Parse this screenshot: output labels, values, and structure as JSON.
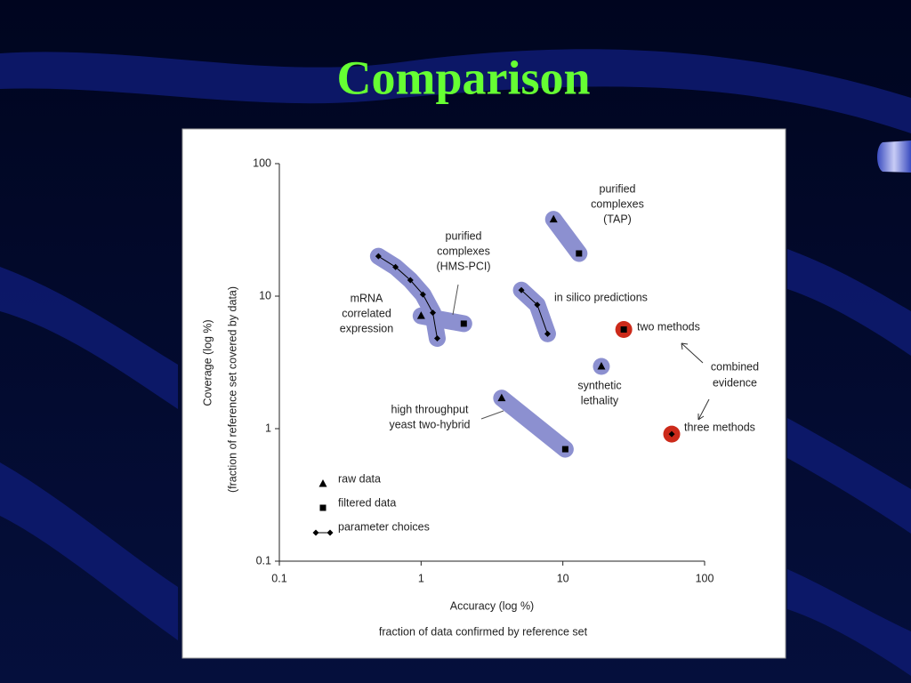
{
  "title": "Comparison",
  "chart_data": {
    "type": "scatter",
    "log_scale": true,
    "xlim": [
      0.1,
      100
    ],
    "ylim": [
      0.1,
      100
    ],
    "xticks": [
      0.1,
      1,
      10,
      100
    ],
    "yticks": [
      0.1,
      1,
      10,
      100
    ],
    "x_label": "Accuracy (log %)",
    "x_sublabel": "fraction of data confirmed by reference set",
    "y_label": "Coverage (log %)",
    "y_sublabel": "(fraction of reference set covered by data)",
    "series": [
      {
        "label_lines": [
          "mRNA",
          "correlated",
          "expression"
        ],
        "highlight": "#8c90d0",
        "markers": [
          "diamond",
          "diamond",
          "diamond",
          "diamond",
          "diamond",
          "diamond"
        ],
        "x": [
          0.5,
          0.66,
          0.84,
          1.03,
          1.21,
          1.3
        ],
        "y": [
          20,
          16.6,
          13.2,
          10.3,
          7.5,
          4.8
        ]
      },
      {
        "label_lines": [
          "purified",
          "complexes",
          "(HMS-PCI)"
        ],
        "highlight": "#8c90d0",
        "markers": [
          "triangle",
          "square"
        ],
        "x": [
          1.0,
          2.0
        ],
        "y": [
          7.1,
          6.2
        ]
      },
      {
        "label_lines": [
          "purified",
          "complexes",
          "(TAP)"
        ],
        "highlight": "#8c90d0",
        "markers": [
          "triangle",
          "square"
        ],
        "x": [
          8.6,
          13
        ],
        "y": [
          38,
          21
        ]
      },
      {
        "label_lines": [
          "in silico predictions"
        ],
        "highlight": "#8c90d0",
        "markers": [
          "diamond",
          "diamond",
          "diamond"
        ],
        "x": [
          5.1,
          6.6,
          7.8
        ],
        "y": [
          11.1,
          8.6,
          5.2
        ]
      },
      {
        "label_lines": [
          "high throughput",
          "yeast two-hybrid"
        ],
        "highlight": "#8c90d0",
        "markers": [
          "triangle",
          "square"
        ],
        "x": [
          3.7,
          10.4
        ],
        "y": [
          1.7,
          0.7
        ]
      },
      {
        "label_lines": [
          "synthetic",
          "lethality"
        ],
        "highlight": "#8c90d0",
        "markers": [
          "triangle"
        ],
        "x": [
          18.7
        ],
        "y": [
          2.95
        ]
      },
      {
        "label_lines": [
          "two methods"
        ],
        "highlight": "#cc2a1a",
        "markers": [
          "square"
        ],
        "x": [
          26.9
        ],
        "y": [
          5.6
        ]
      },
      {
        "label_lines": [
          "three methods"
        ],
        "highlight": "#cc2a1a",
        "markers": [
          "diamond"
        ],
        "x": [
          58.6
        ],
        "y": [
          0.91
        ]
      }
    ],
    "annotation_lines": [
      "combined",
      "evidence"
    ],
    "legend": [
      {
        "marker": "triangle",
        "label": "raw data"
      },
      {
        "marker": "square",
        "label": "filtered data"
      },
      {
        "marker": "diamond",
        "label": "parameter choices"
      }
    ]
  }
}
